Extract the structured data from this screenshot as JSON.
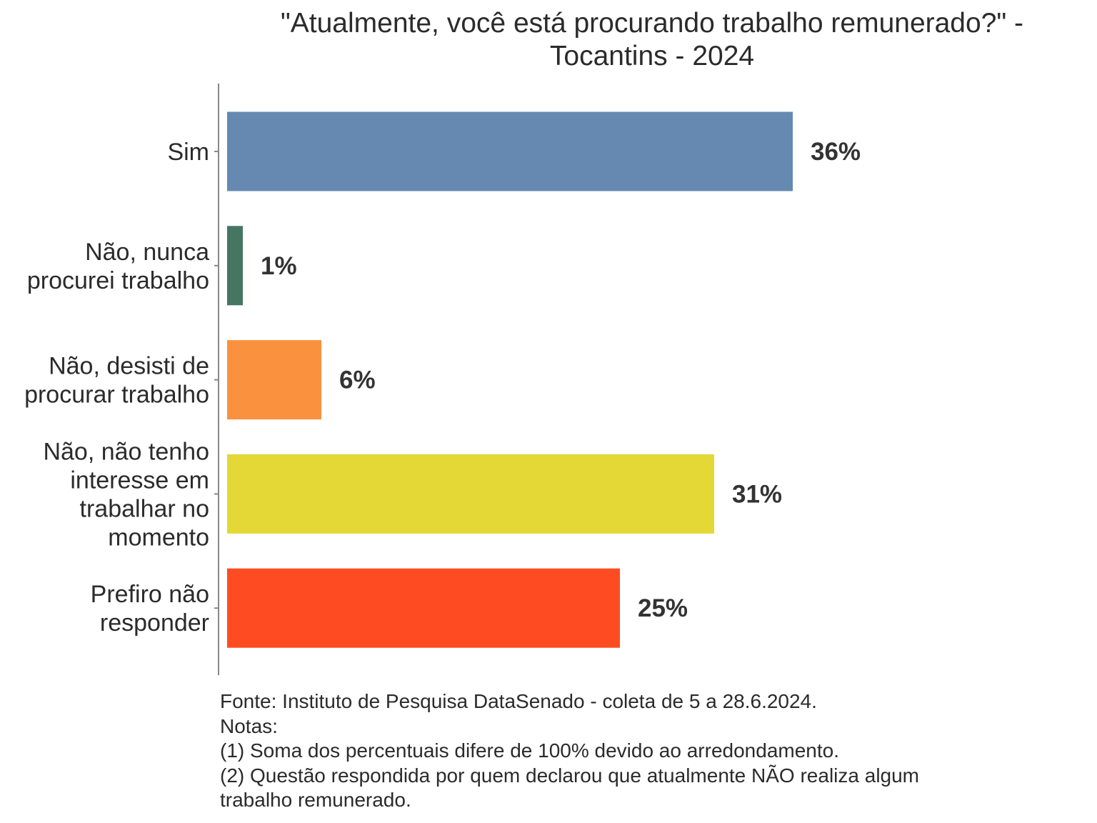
{
  "chart_data": {
    "type": "bar",
    "orientation": "horizontal",
    "title": "\"Atualmente, você está procurando trabalho remunerado?\" - Tocantins - 2024",
    "title_lines": [
      "\"Atualmente, você está procurando trabalho remunerado?\" -",
      "Tocantins - 2024"
    ],
    "categories": [
      [
        "Sim"
      ],
      [
        "Não, nunca",
        "procurei trabalho"
      ],
      [
        "Não, desisti de",
        "procurar trabalho"
      ],
      [
        "Não, não tenho",
        "interesse em",
        "trabalhar no",
        "momento"
      ],
      [
        "Prefiro não",
        "responder"
      ]
    ],
    "values": [
      36,
      1,
      6,
      31,
      25
    ],
    "value_labels": [
      "36%",
      "1%",
      "6%",
      "31%",
      "25%"
    ],
    "colors": [
      "#6589B0",
      "#467562",
      "#FA913F",
      "#E3D836",
      "#FF4B22"
    ],
    "xlabel": "",
    "ylabel": "",
    "xlim": [
      0,
      40
    ],
    "grid": false
  },
  "notes": [
    "Fonte: Instituto de Pesquisa DataSenado - coleta de 5 a 28.6.2024.",
    "Notas:",
    "(1) Soma dos percentuais difere de 100% devido ao arredondamento.",
    "(2) Questão respondida por quem declarou que atualmente NÃO realiza algum",
    "trabalho remunerado."
  ]
}
